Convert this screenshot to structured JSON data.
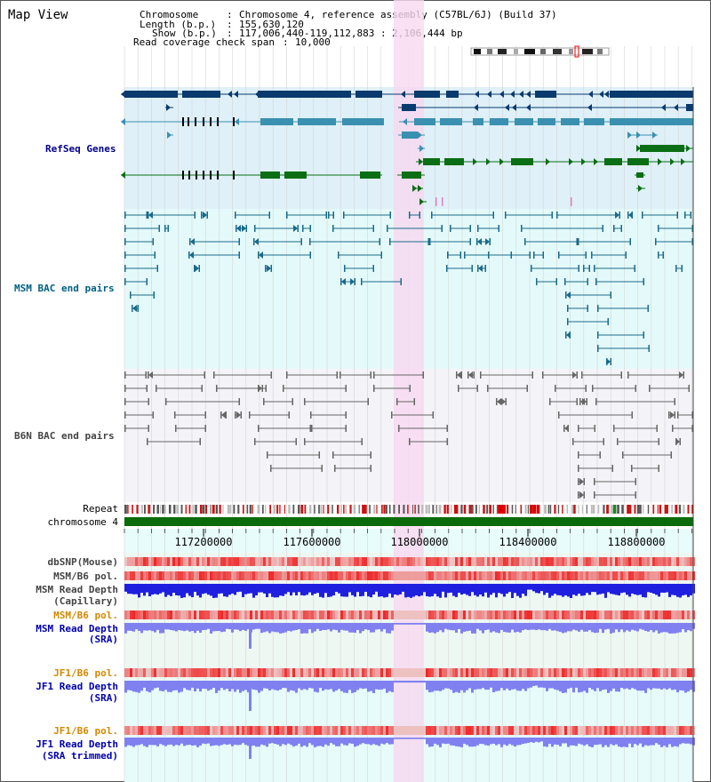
{
  "map_title": "Map View",
  "info": {
    "chromosome_key": "Chromosome",
    "chromosome_value": "Chromosome 4, reference assembly (C57BL/6J) (Build 37)",
    "length_key": "Length (b.p.)",
    "length_value": "155,630,120",
    "show_key": "Show (b.p.)",
    "show_value": "117,006,440-119,112,883 : 2,106,444 bp",
    "coverage_key": "Read coverage check span",
    "coverage_value": "10,000"
  },
  "tracks": {
    "refseq": "RefSeq Genes",
    "msm_bac": "MSM BAC end pairs",
    "b6n_bac": "B6N BAC end pairs",
    "repeat": "Repeat",
    "chromosome": "chromosome 4",
    "dbsnp": "dbSNP(Mouse)",
    "msm_b6_pol_1": "MSM/B6 pol.",
    "msm_read_depth_cap_1": "MSM Read Depth",
    "msm_read_depth_cap_2": "(Capillary)",
    "msm_b6_pol_2": "MSM/B6 pol.",
    "msm_read_depth_sra_1": "MSM Read Depth",
    "msm_read_depth_sra_2": "(SRA)",
    "jf1_b6_pol_1": "JF1/B6 pol.",
    "jf1_read_depth_sra_1": "JF1 Read Depth",
    "jf1_read_depth_sra_2": "(SRA)",
    "jf1_b6_pol_2": "JF1/B6 pol.",
    "jf1_read_depth_trim_1": "JF1 Read Depth",
    "jf1_read_depth_trim_2": "(SRA trimmed)"
  },
  "ruler": {
    "ticks": [
      "117200000",
      "117600000",
      "118000000",
      "118400000",
      "118800000"
    ]
  },
  "colors": {
    "refseq_bg": "#dff0f8",
    "msm_bg": "#e4fafa",
    "b6n_bg": "#f4f4f8",
    "highlight": "#f8d8f0",
    "gene_navy": "#0a3a6e",
    "gene_teal": "#3a90b0",
    "gene_green": "#0a6e14",
    "chromosome_bar": "#0b6b0b",
    "depth_capillary": "#1f1fe0",
    "depth_sra": "#8080f0"
  }
}
